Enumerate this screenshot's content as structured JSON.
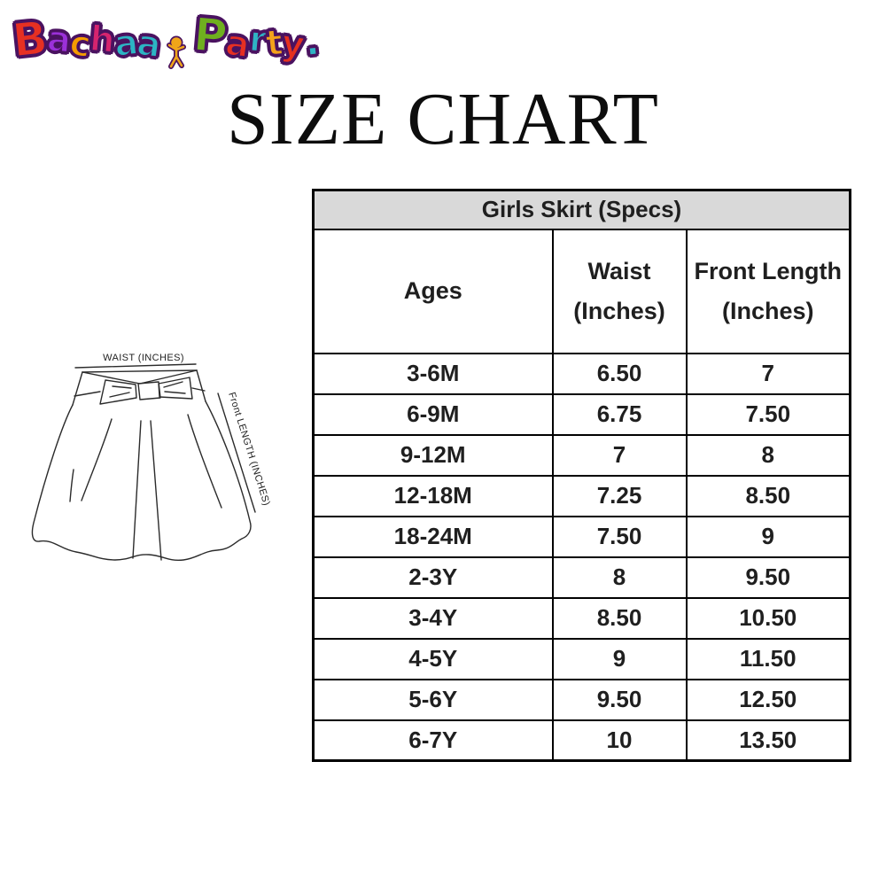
{
  "logo": {
    "brand_name": "Bachaa Party",
    "outline_color": "#4a1260",
    "letters": [
      {
        "ch": "B",
        "color": "#e63022"
      },
      {
        "ch": "a",
        "color": "#9b30d9"
      },
      {
        "ch": "c",
        "color": "#f59c00"
      },
      {
        "ch": "h",
        "color": "#d6246e"
      },
      {
        "ch": "a",
        "color": "#2cb5c4"
      },
      {
        "ch": "a",
        "color": "#2cb5c4"
      },
      {
        "ch": " ",
        "color": "#f0a519"
      },
      {
        "ch": "P",
        "color": "#6faf1f"
      },
      {
        "ch": "a",
        "color": "#e63022"
      },
      {
        "ch": "r",
        "color": "#2fb3c4"
      },
      {
        "ch": "t",
        "color": "#f4a31b"
      },
      {
        "ch": "y",
        "color": "#e5311f"
      },
      {
        "ch": ".",
        "color": "#2fb3c4"
      }
    ]
  },
  "title": {
    "text": "SIZE CHART"
  },
  "size_table": {
    "title": "Girls Skirt (Specs)",
    "columns": [
      {
        "line1": "Ages",
        "line2": ""
      },
      {
        "line1": "Waist",
        "line2": "(Inches)"
      },
      {
        "line1": "Front Length",
        "line2": "(Inches)"
      }
    ],
    "rows": [
      [
        "3-6M",
        "6.50",
        "7"
      ],
      [
        "6-9M",
        "6.75",
        "7.50"
      ],
      [
        "9-12M",
        "7",
        "8"
      ],
      [
        "12-18M",
        "7.25",
        "8.50"
      ],
      [
        "18-24M",
        "7.50",
        "9"
      ],
      [
        "2-3Y",
        "8",
        "9.50"
      ],
      [
        "3-4Y",
        "8.50",
        "10.50"
      ],
      [
        "4-5Y",
        "9",
        "11.50"
      ],
      [
        "5-6Y",
        "9.50",
        "12.50"
      ],
      [
        "6-7Y",
        "10",
        "13.50"
      ]
    ]
  },
  "diagram": {
    "waist_label": "WAIST  (INCHES)",
    "front_length_label": "Front LENGTH  (INCHES)"
  },
  "chart_data": {
    "type": "table",
    "title": "Girls Skirt (Specs)",
    "columns": [
      "Ages",
      "Waist (Inches)",
      "Front Length (Inches)"
    ],
    "rows": [
      [
        "3-6M",
        6.5,
        7
      ],
      [
        "6-9M",
        6.75,
        7.5
      ],
      [
        "9-12M",
        7,
        8
      ],
      [
        "12-18M",
        7.25,
        8.5
      ],
      [
        "18-24M",
        7.5,
        9
      ],
      [
        "2-3Y",
        8,
        9.5
      ],
      [
        "3-4Y",
        8.5,
        10.5
      ],
      [
        "4-5Y",
        9,
        11.5
      ],
      [
        "5-6Y",
        9.5,
        12.5
      ],
      [
        "6-7Y",
        10,
        13.5
      ]
    ]
  },
  "colors": {
    "table_border": "#000000",
    "table_header_bg": "#d9d9d9",
    "table_text": "#1f1f1f",
    "title_text": "#0d0d0d",
    "diagram_stroke": "#2b2b2b"
  }
}
